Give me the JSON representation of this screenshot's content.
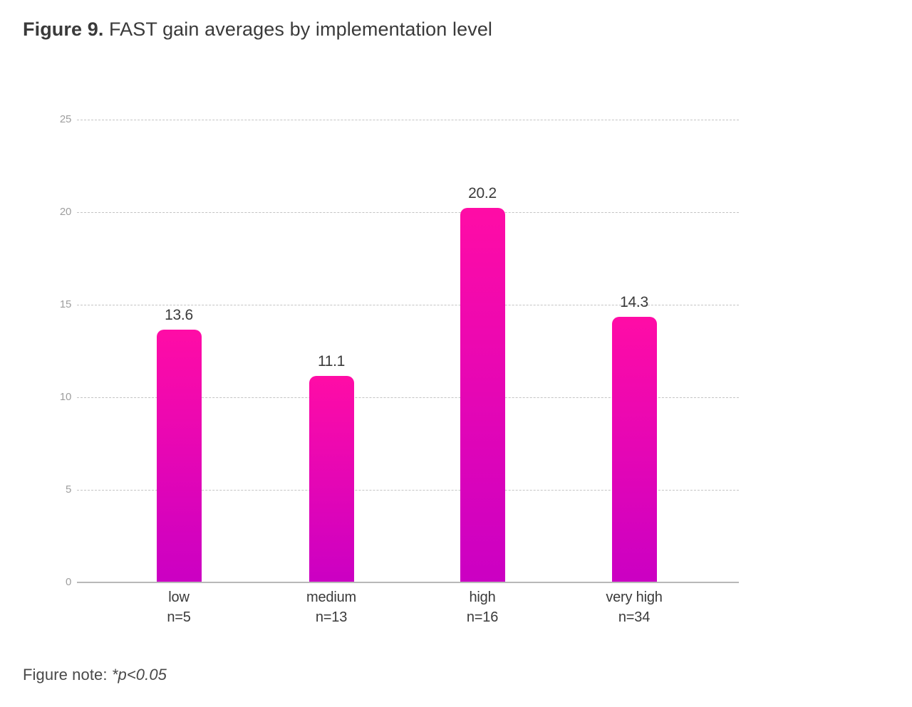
{
  "figure": {
    "title_prefix": "Figure 9.",
    "title_text": " FAST gain averages by implementation level",
    "note_prefix": "Figure note: ",
    "note_emphasis": "*p<0.05"
  },
  "chart_data": {
    "type": "bar",
    "title": "FAST gain averages by implementation level",
    "categories": [
      "low",
      "medium",
      "high",
      "very high"
    ],
    "category_sublabels": [
      "n=5",
      "n=13",
      "n=16",
      "n=34"
    ],
    "values": [
      13.6,
      11.1,
      20.2,
      14.3
    ],
    "value_labels": [
      "13.6",
      "11.1",
      "20.2",
      "14.3"
    ],
    "xlabel": "",
    "ylabel": "",
    "ylim": [
      0,
      25
    ],
    "yticks": [
      0,
      5,
      10,
      15,
      20,
      25
    ],
    "grid": "horizontal dashed",
    "legend": "none",
    "bar_color_top": "#ff0ca6",
    "bar_color_bottom": "#cb00c3",
    "axis_color": "#b8b8b8",
    "gridline_color": "#c4c4c4",
    "tick_label_color": "#9e9e9e",
    "label_color": "#3a3a3a"
  }
}
